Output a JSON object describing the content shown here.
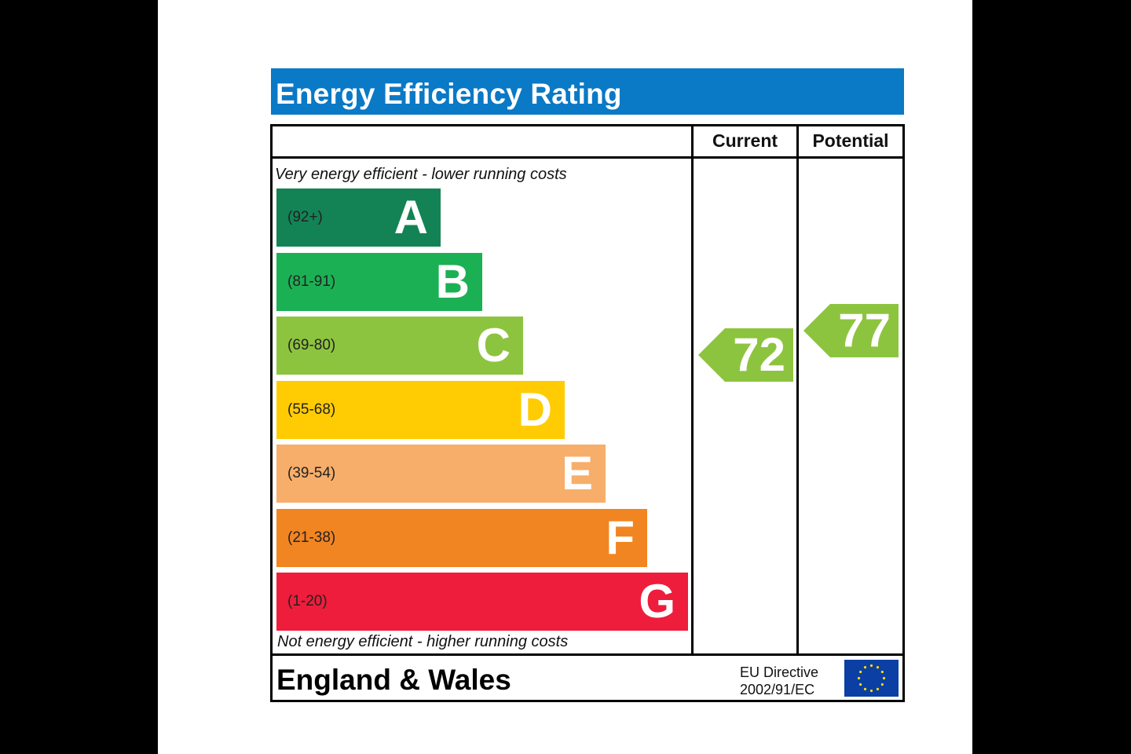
{
  "title": "Energy Efficiency Rating",
  "columns": {
    "current": "Current",
    "potential": "Potential"
  },
  "top_caption": "Very energy efficient - lower running costs",
  "bottom_caption": "Not energy efficient - higher running costs",
  "bands": [
    {
      "letter": "A",
      "range": "(92+)",
      "color": "#138356"
    },
    {
      "letter": "B",
      "range": "(81-91)",
      "color": "#1cb054"
    },
    {
      "letter": "C",
      "range": "(69-80)",
      "color": "#8dc43f"
    },
    {
      "letter": "D",
      "range": "(55-68)",
      "color": "#ffcc03"
    },
    {
      "letter": "E",
      "range": "(39-54)",
      "color": "#f7ae6a"
    },
    {
      "letter": "F",
      "range": "(21-38)",
      "color": "#f18522"
    },
    {
      "letter": "G",
      "range": "(1-20)",
      "color": "#ee1d3c"
    }
  ],
  "ratings": {
    "current": {
      "value": "72",
      "band": "C",
      "color": "#8dc43f"
    },
    "potential": {
      "value": "77",
      "band": "C",
      "color": "#8dc43f"
    }
  },
  "footer": {
    "region": "England & Wales",
    "directive_line1": "EU Directive",
    "directive_line2": "2002/91/EC"
  },
  "colors": {
    "title_bar": "#0a79c6",
    "eu_flag": "#0b3fa4",
    "eu_stars": "#ffdd00"
  }
}
